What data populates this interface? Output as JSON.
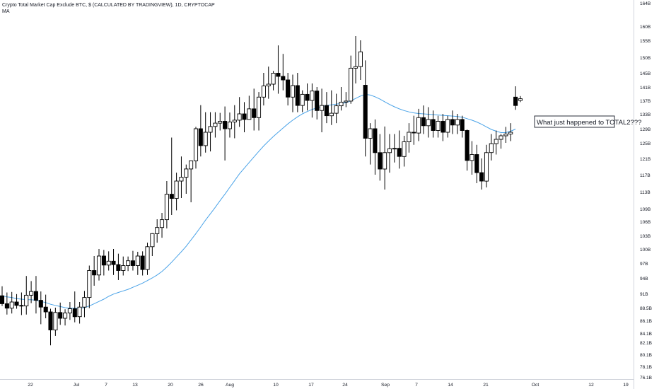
{
  "header": {
    "title": "Crypto Total Market Cap Exclude BTC, $ (CALCULATED BY TRADINGVIEW), 1D, CRYPTOCAP",
    "indicator": "MA"
  },
  "annotation": {
    "text": "What just happened to TOTAL2???"
  },
  "colors": {
    "candle": "#000000",
    "ma_line": "#4aa3e8",
    "axis_text": "#131722",
    "axis_line": "#d1d4dc",
    "annotation_border": "#2a2e39"
  },
  "chart_data": {
    "type": "candlestick",
    "x_tick_labels": [
      "22",
      "Jul",
      "7",
      "13",
      "20",
      "26",
      "Aug",
      "10",
      "17",
      "24",
      "Sep",
      "7",
      "14",
      "21",
      "Oct",
      "12",
      "19"
    ],
    "y_tick_labels": [
      "164B",
      "160B",
      "155B",
      "150B",
      "145B",
      "141B",
      "137B",
      "133B",
      "129B",
      "125B",
      "121B",
      "117B",
      "113B",
      "109B",
      "106B",
      "103B",
      "100B",
      "97B",
      "94B",
      "91B",
      "88.5B",
      "86.1B",
      "84.1B",
      "82.1B",
      "80.1B",
      "78.1B",
      "76.1B"
    ],
    "ylim": [
      76,
      165
    ],
    "candles": [
      {
        "o": 90.6,
        "h": 92.4,
        "l": 88.8,
        "c": 89.2
      },
      {
        "o": 89.2,
        "h": 91.2,
        "l": 87.2,
        "c": 88.4
      },
      {
        "o": 88.4,
        "h": 91.3,
        "l": 87.4,
        "c": 89.5
      },
      {
        "o": 89.5,
        "h": 90.9,
        "l": 88.3,
        "c": 88.9
      },
      {
        "o": 88.9,
        "h": 91.2,
        "l": 87.1,
        "c": 88.8
      },
      {
        "o": 88.8,
        "h": 94.4,
        "l": 87.2,
        "c": 90.7
      },
      {
        "o": 90.7,
        "h": 93.4,
        "l": 89.3,
        "c": 91.4
      },
      {
        "o": 91.4,
        "h": 94.4,
        "l": 87.4,
        "c": 89.8
      },
      {
        "o": 89.8,
        "h": 91.4,
        "l": 85.5,
        "c": 88.6
      },
      {
        "o": 88.6,
        "h": 90.8,
        "l": 86.5,
        "c": 87.7
      },
      {
        "o": 87.7,
        "h": 88.3,
        "l": 81.6,
        "c": 84.6
      },
      {
        "o": 84.6,
        "h": 88.5,
        "l": 83.5,
        "c": 87.6
      },
      {
        "o": 87.6,
        "h": 89.4,
        "l": 85.4,
        "c": 86.5
      },
      {
        "o": 86.5,
        "h": 88.2,
        "l": 85.3,
        "c": 87.5
      },
      {
        "o": 87.5,
        "h": 89.5,
        "l": 86.2,
        "c": 88.3
      },
      {
        "o": 88.3,
        "h": 91.4,
        "l": 85.8,
        "c": 86.8
      },
      {
        "o": 86.8,
        "h": 89.5,
        "l": 85.6,
        "c": 88.6
      },
      {
        "o": 88.6,
        "h": 91.5,
        "l": 86.7,
        "c": 90.3
      },
      {
        "o": 90.3,
        "h": 96.5,
        "l": 88.4,
        "c": 95.5
      },
      {
        "o": 95.5,
        "h": 98.5,
        "l": 92.5,
        "c": 94.6
      },
      {
        "o": 94.6,
        "h": 100.0,
        "l": 93.5,
        "c": 98.5
      },
      {
        "o": 98.5,
        "h": 99.8,
        "l": 94.5,
        "c": 96.6
      },
      {
        "o": 96.6,
        "h": 99.5,
        "l": 95.5,
        "c": 97.4
      },
      {
        "o": 97.4,
        "h": 100.0,
        "l": 94.6,
        "c": 96.7
      },
      {
        "o": 96.7,
        "h": 99.0,
        "l": 93.6,
        "c": 95.5
      },
      {
        "o": 95.5,
        "h": 98.4,
        "l": 94.5,
        "c": 96.5
      },
      {
        "o": 96.5,
        "h": 98.4,
        "l": 95.4,
        "c": 97.5
      },
      {
        "o": 97.5,
        "h": 99.6,
        "l": 95.5,
        "c": 96.5
      },
      {
        "o": 96.5,
        "h": 99.4,
        "l": 94.6,
        "c": 98.5
      },
      {
        "o": 98.5,
        "h": 99.5,
        "l": 94.5,
        "c": 95.7
      },
      {
        "o": 95.7,
        "h": 101.4,
        "l": 94.6,
        "c": 100.5
      },
      {
        "o": 100.5,
        "h": 103.5,
        "l": 98.5,
        "c": 103.4
      },
      {
        "o": 103.4,
        "h": 106.5,
        "l": 101.4,
        "c": 104.7
      },
      {
        "o": 104.7,
        "h": 108.0,
        "l": 102.5,
        "c": 106.4
      },
      {
        "o": 106.4,
        "h": 115.5,
        "l": 104.5,
        "c": 112.4
      },
      {
        "o": 112.4,
        "h": 126.5,
        "l": 107.5,
        "c": 111.4
      },
      {
        "o": 111.4,
        "h": 117.5,
        "l": 108.6,
        "c": 115.5
      },
      {
        "o": 115.5,
        "h": 121.5,
        "l": 111.5,
        "c": 116.4
      },
      {
        "o": 116.4,
        "h": 119.5,
        "l": 112.5,
        "c": 118.4
      },
      {
        "o": 118.4,
        "h": 120.5,
        "l": 110.5,
        "c": 120.4
      },
      {
        "o": 120.4,
        "h": 129.5,
        "l": 118.5,
        "c": 129.0
      },
      {
        "o": 129.0,
        "h": 135.6,
        "l": 121.5,
        "c": 124.3
      },
      {
        "o": 124.3,
        "h": 133.5,
        "l": 122.5,
        "c": 128.0
      },
      {
        "o": 128.0,
        "h": 133.5,
        "l": 122.8,
        "c": 129.6
      },
      {
        "o": 129.6,
        "h": 133.5,
        "l": 126.5,
        "c": 130.5
      },
      {
        "o": 130.5,
        "h": 133.3,
        "l": 128.5,
        "c": 131.0
      },
      {
        "o": 131.0,
        "h": 135.2,
        "l": 120.5,
        "c": 129.0
      },
      {
        "o": 129.0,
        "h": 133.4,
        "l": 126.5,
        "c": 130.8
      },
      {
        "o": 130.8,
        "h": 135.6,
        "l": 126.3,
        "c": 131.3
      },
      {
        "o": 131.3,
        "h": 138.0,
        "l": 129.5,
        "c": 133.0
      },
      {
        "o": 133.0,
        "h": 136.5,
        "l": 128.0,
        "c": 131.5
      },
      {
        "o": 131.5,
        "h": 138.4,
        "l": 131.5,
        "c": 134.5
      },
      {
        "o": 134.5,
        "h": 140.5,
        "l": 128.5,
        "c": 132.0
      },
      {
        "o": 132.0,
        "h": 139.5,
        "l": 128.5,
        "c": 138.0
      },
      {
        "o": 138.0,
        "h": 145.0,
        "l": 135.5,
        "c": 141.3
      },
      {
        "o": 141.3,
        "h": 147.0,
        "l": 137.5,
        "c": 141.8
      },
      {
        "o": 141.8,
        "h": 145.6,
        "l": 140.0,
        "c": 144.9
      },
      {
        "o": 144.9,
        "h": 153.5,
        "l": 139.0,
        "c": 144.0
      },
      {
        "o": 144.0,
        "h": 151.0,
        "l": 140.0,
        "c": 143.0
      },
      {
        "o": 143.0,
        "h": 145.0,
        "l": 135.5,
        "c": 138.0
      },
      {
        "o": 138.0,
        "h": 144.5,
        "l": 133.5,
        "c": 141.4
      },
      {
        "o": 141.4,
        "h": 145.0,
        "l": 133.5,
        "c": 135.5
      },
      {
        "o": 135.5,
        "h": 140.0,
        "l": 133.5,
        "c": 138.8
      },
      {
        "o": 138.8,
        "h": 142.0,
        "l": 134.0,
        "c": 137.0
      },
      {
        "o": 137.0,
        "h": 142.0,
        "l": 132.0,
        "c": 139.8
      },
      {
        "o": 139.8,
        "h": 141.0,
        "l": 131.5,
        "c": 134.0
      },
      {
        "o": 134.0,
        "h": 140.5,
        "l": 128.0,
        "c": 135.5
      },
      {
        "o": 135.5,
        "h": 139.5,
        "l": 130.5,
        "c": 132.5
      },
      {
        "o": 132.5,
        "h": 140.0,
        "l": 130.0,
        "c": 133.2
      },
      {
        "o": 133.2,
        "h": 139.0,
        "l": 130.5,
        "c": 135.4
      },
      {
        "o": 135.4,
        "h": 141.0,
        "l": 134.0,
        "c": 136.5
      },
      {
        "o": 136.5,
        "h": 139.5,
        "l": 135.0,
        "c": 136.8
      },
      {
        "o": 136.8,
        "h": 150.5,
        "l": 136.0,
        "c": 146.5
      },
      {
        "o": 146.5,
        "h": 156.5,
        "l": 142.0,
        "c": 147.0
      },
      {
        "o": 147.0,
        "h": 155.0,
        "l": 143.0,
        "c": 151.6
      },
      {
        "o": 141.5,
        "h": 149.0,
        "l": 121.5,
        "c": 126.3
      },
      {
        "o": 126.3,
        "h": 130.5,
        "l": 119.5,
        "c": 129.0
      },
      {
        "o": 129.0,
        "h": 131.5,
        "l": 117.0,
        "c": 122.5
      },
      {
        "o": 122.5,
        "h": 127.5,
        "l": 115.6,
        "c": 118.4
      },
      {
        "o": 118.4,
        "h": 129.6,
        "l": 113.5,
        "c": 122.5
      },
      {
        "o": 122.5,
        "h": 127.5,
        "l": 117.5,
        "c": 123.5
      },
      {
        "o": 123.5,
        "h": 127.5,
        "l": 120.0,
        "c": 123.6
      },
      {
        "o": 123.6,
        "h": 128.5,
        "l": 118.5,
        "c": 121.5
      },
      {
        "o": 121.5,
        "h": 127.0,
        "l": 119.0,
        "c": 125.3
      },
      {
        "o": 125.3,
        "h": 130.5,
        "l": 122.5,
        "c": 128.0
      },
      {
        "o": 128.0,
        "h": 132.5,
        "l": 124.5,
        "c": 127.8
      },
      {
        "o": 127.8,
        "h": 134.5,
        "l": 125.5,
        "c": 132.0
      },
      {
        "o": 132.0,
        "h": 135.5,
        "l": 127.5,
        "c": 129.8
      },
      {
        "o": 129.8,
        "h": 135.0,
        "l": 126.5,
        "c": 131.5
      },
      {
        "o": 131.5,
        "h": 134.0,
        "l": 126.5,
        "c": 128.5
      },
      {
        "o": 128.5,
        "h": 132.5,
        "l": 126.5,
        "c": 131.0
      },
      {
        "o": 131.0,
        "h": 133.0,
        "l": 125.5,
        "c": 128.0
      },
      {
        "o": 128.0,
        "h": 132.5,
        "l": 126.5,
        "c": 131.5
      },
      {
        "o": 131.5,
        "h": 134.0,
        "l": 127.5,
        "c": 130.0
      },
      {
        "o": 130.0,
        "h": 133.0,
        "l": 127.5,
        "c": 131.5
      },
      {
        "o": 131.5,
        "h": 132.5,
        "l": 126.5,
        "c": 128.5
      },
      {
        "o": 128.5,
        "h": 128.8,
        "l": 118.0,
        "c": 120.5
      },
      {
        "o": 120.5,
        "h": 125.5,
        "l": 117.0,
        "c": 122.0
      },
      {
        "o": 122.0,
        "h": 124.5,
        "l": 115.0,
        "c": 117.5
      },
      {
        "o": 117.5,
        "h": 121.0,
        "l": 113.5,
        "c": 115.5
      },
      {
        "o": 115.5,
        "h": 124.5,
        "l": 114.0,
        "c": 122.5
      },
      {
        "o": 122.5,
        "h": 127.5,
        "l": 120.5,
        "c": 124.8
      },
      {
        "o": 124.8,
        "h": 128.5,
        "l": 122.0,
        "c": 126.0
      },
      {
        "o": 126.0,
        "h": 127.5,
        "l": 123.5,
        "c": 127.0
      },
      {
        "o": 127.0,
        "h": 129.5,
        "l": 125.0,
        "c": 127.5
      },
      {
        "o": 127.5,
        "h": 130.5,
        "l": 125.5,
        "c": 128.0
      },
      {
        "o": 138.0,
        "h": 141.2,
        "l": 134.2,
        "c": 135.5
      },
      {
        "o": 137.0,
        "h": 138.3,
        "l": 136.5,
        "c": 137.5
      }
    ],
    "ma_series": [
      90.6,
      90.4,
      90.3,
      90.1,
      90.0,
      89.9,
      89.9,
      89.8,
      89.6,
      89.4,
      89.1,
      88.9,
      88.7,
      88.5,
      88.4,
      88.4,
      88.4,
      88.5,
      88.8,
      89.2,
      89.6,
      90.0,
      90.5,
      90.9,
      91.2,
      91.5,
      91.8,
      92.2,
      92.6,
      93.0,
      93.5,
      94.0,
      94.6,
      95.3,
      96.2,
      97.2,
      98.3,
      99.4,
      100.6,
      102.0,
      103.4,
      104.8,
      106.3,
      107.8,
      109.3,
      110.9,
      112.4,
      114.0,
      115.6,
      117.2,
      118.6,
      120.0,
      121.4,
      122.8,
      124.2,
      125.5,
      126.8,
      128.0,
      129.2,
      130.3,
      131.3,
      132.2,
      133.0,
      133.7,
      134.3,
      134.8,
      135.2,
      135.5,
      135.7,
      135.9,
      136.1,
      136.3,
      136.9,
      137.6,
      138.3,
      138.8,
      138.6,
      138.1,
      137.4,
      136.6,
      135.8,
      135.1,
      134.5,
      134.0,
      133.6,
      133.3,
      133.1,
      133.0,
      132.9,
      132.8,
      132.7,
      132.6,
      132.5,
      132.4,
      132.3,
      132.1,
      131.7,
      131.3,
      130.8,
      130.2,
      129.5,
      128.8,
      128.3,
      127.9,
      127.9,
      128.3,
      128.9
    ]
  }
}
